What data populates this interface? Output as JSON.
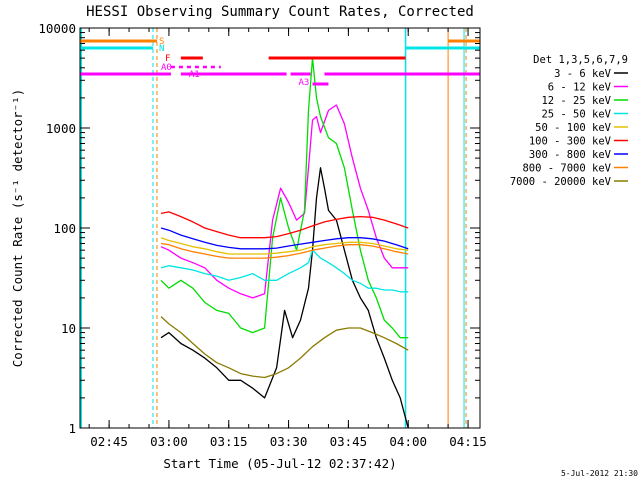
{
  "chart_data": {
    "type": "line",
    "title": "HESSI Observing Summary Count Rates, Corrected",
    "xlabel": "Start Time (05-Jul-12 02:37:42)",
    "ylabel": "Corrected Count Rate (s⁻¹ detector⁻¹)",
    "y_scale": "log",
    "ylim": [
      1,
      10000
    ],
    "xlim": [
      "02:37:42",
      "04:18:00"
    ],
    "x_ticks": [
      "02:45",
      "03:00",
      "03:15",
      "03:30",
      "03:45",
      "04:00",
      "04:15"
    ],
    "y_ticks": [
      "1",
      "10",
      "100",
      "1000",
      "10000"
    ],
    "timestamp": "5-Jul-2012 21:30",
    "legend": {
      "placement": "right",
      "title": "Det 1,3,5,6,7,9",
      "entries": [
        {
          "label": "3 - 6 keV",
          "color": "#000000"
        },
        {
          "label": "6 - 12 keV",
          "color": "#ff00ff"
        },
        {
          "label": "12 - 25 keV",
          "color": "#00dd00"
        },
        {
          "label": "25 - 50 keV",
          "color": "#00e5e5"
        },
        {
          "label": "50 - 100 keV",
          "color": "#e5c000"
        },
        {
          "label": "100 - 300 keV",
          "color": "#ff0000"
        },
        {
          "label": "300 - 800 keV",
          "color": "#0000ff"
        },
        {
          "label": "800 - 7000 keV",
          "color": "#ff8000"
        },
        {
          "label": "7000 - 20000 keV",
          "color": "#8b7a00"
        }
      ]
    },
    "flag_labels": [
      {
        "text": "S",
        "color": "#ff8000"
      },
      {
        "text": "N",
        "color": "#00e5e5"
      },
      {
        "text": "F",
        "color": "#ff0000"
      },
      {
        "text": "A0",
        "color": "#ff00ff"
      },
      {
        "text": "A1",
        "color": "#ff00ff"
      },
      {
        "text": "A3",
        "color": "#ff00ff"
      }
    ],
    "series": [
      {
        "name": "3 - 6 keV",
        "color": "#000000",
        "points": [
          [
            "02:58",
            8
          ],
          [
            "03:00",
            9
          ],
          [
            "03:03",
            7
          ],
          [
            "03:06",
            6
          ],
          [
            "03:09",
            5
          ],
          [
            "03:12",
            4
          ],
          [
            "03:15",
            3
          ],
          [
            "03:18",
            3
          ],
          [
            "03:21",
            2.5
          ],
          [
            "03:24",
            2
          ],
          [
            "03:27",
            4
          ],
          [
            "03:29",
            15
          ],
          [
            "03:31",
            8
          ],
          [
            "03:33",
            12
          ],
          [
            "03:35",
            25
          ],
          [
            "03:36",
            60
          ],
          [
            "03:37",
            200
          ],
          [
            "03:38",
            400
          ],
          [
            "03:39",
            250
          ],
          [
            "03:40",
            150
          ],
          [
            "03:42",
            120
          ],
          [
            "03:44",
            60
          ],
          [
            "03:46",
            30
          ],
          [
            "03:48",
            20
          ],
          [
            "03:50",
            15
          ],
          [
            "03:52",
            8
          ],
          [
            "03:54",
            5
          ],
          [
            "03:56",
            3
          ],
          [
            "03:58",
            2
          ],
          [
            "04:00",
            1
          ]
        ]
      },
      {
        "name": "6 - 12 keV",
        "color": "#ff00ff",
        "points": [
          [
            "02:58",
            65
          ],
          [
            "03:00",
            60
          ],
          [
            "03:03",
            50
          ],
          [
            "03:06",
            45
          ],
          [
            "03:09",
            40
          ],
          [
            "03:12",
            30
          ],
          [
            "03:15",
            25
          ],
          [
            "03:18",
            22
          ],
          [
            "03:21",
            20
          ],
          [
            "03:24",
            22
          ],
          [
            "03:26",
            120
          ],
          [
            "03:28",
            250
          ],
          [
            "03:30",
            180
          ],
          [
            "03:32",
            120
          ],
          [
            "03:34",
            140
          ],
          [
            "03:35",
            400
          ],
          [
            "03:36",
            1200
          ],
          [
            "03:37",
            1300
          ],
          [
            "03:38",
            900
          ],
          [
            "03:40",
            1500
          ],
          [
            "03:42",
            1700
          ],
          [
            "03:44",
            1100
          ],
          [
            "03:46",
            500
          ],
          [
            "03:48",
            250
          ],
          [
            "03:50",
            150
          ],
          [
            "03:52",
            80
          ],
          [
            "03:54",
            50
          ],
          [
            "03:56",
            40
          ],
          [
            "03:58",
            40
          ],
          [
            "04:00",
            40
          ]
        ]
      },
      {
        "name": "12 - 25 keV",
        "color": "#00dd00",
        "points": [
          [
            "02:58",
            30
          ],
          [
            "03:00",
            25
          ],
          [
            "03:03",
            30
          ],
          [
            "03:06",
            25
          ],
          [
            "03:09",
            18
          ],
          [
            "03:12",
            15
          ],
          [
            "03:15",
            14
          ],
          [
            "03:18",
            10
          ],
          [
            "03:21",
            9
          ],
          [
            "03:24",
            10
          ],
          [
            "03:26",
            80
          ],
          [
            "03:28",
            200
          ],
          [
            "03:30",
            100
          ],
          [
            "03:32",
            60
          ],
          [
            "03:34",
            150
          ],
          [
            "03:35",
            1500
          ],
          [
            "03:36",
            5000
          ],
          [
            "03:37",
            2000
          ],
          [
            "03:38",
            1300
          ],
          [
            "03:40",
            800
          ],
          [
            "03:42",
            700
          ],
          [
            "03:44",
            400
          ],
          [
            "03:46",
            150
          ],
          [
            "03:48",
            60
          ],
          [
            "03:50",
            30
          ],
          [
            "03:52",
            20
          ],
          [
            "03:54",
            12
          ],
          [
            "03:56",
            10
          ],
          [
            "03:58",
            8
          ],
          [
            "04:00",
            8
          ]
        ]
      },
      {
        "name": "25 - 50 keV",
        "color": "#00e5e5",
        "points": [
          [
            "02:58",
            40
          ],
          [
            "03:00",
            42
          ],
          [
            "03:03",
            40
          ],
          [
            "03:06",
            38
          ],
          [
            "03:09",
            35
          ],
          [
            "03:12",
            33
          ],
          [
            "03:15",
            30
          ],
          [
            "03:18",
            32
          ],
          [
            "03:21",
            35
          ],
          [
            "03:24",
            30
          ],
          [
            "03:27",
            30
          ],
          [
            "03:30",
            35
          ],
          [
            "03:33",
            40
          ],
          [
            "03:35",
            45
          ],
          [
            "03:36",
            60
          ],
          [
            "03:38",
            50
          ],
          [
            "03:40",
            45
          ],
          [
            "03:42",
            40
          ],
          [
            "03:44",
            35
          ],
          [
            "03:46",
            30
          ],
          [
            "03:48",
            28
          ],
          [
            "03:50",
            25
          ],
          [
            "03:52",
            25
          ],
          [
            "03:54",
            24
          ],
          [
            "03:56",
            24
          ],
          [
            "03:58",
            23
          ],
          [
            "04:00",
            23
          ]
        ]
      },
      {
        "name": "50 - 100 keV",
        "color": "#e5c000",
        "points": [
          [
            "02:58",
            80
          ],
          [
            "03:00",
            75
          ],
          [
            "03:03",
            70
          ],
          [
            "03:06",
            65
          ],
          [
            "03:09",
            62
          ],
          [
            "03:12",
            58
          ],
          [
            "03:15",
            55
          ],
          [
            "03:18",
            55
          ],
          [
            "03:21",
            55
          ],
          [
            "03:24",
            55
          ],
          [
            "03:27",
            56
          ],
          [
            "03:30",
            58
          ],
          [
            "03:33",
            60
          ],
          [
            "03:36",
            65
          ],
          [
            "03:39",
            68
          ],
          [
            "03:42",
            70
          ],
          [
            "03:45",
            72
          ],
          [
            "03:48",
            72
          ],
          [
            "03:51",
            70
          ],
          [
            "03:54",
            66
          ],
          [
            "03:57",
            62
          ],
          [
            "04:00",
            60
          ]
        ]
      },
      {
        "name": "100 - 300 keV",
        "color": "#ff0000",
        "points": [
          [
            "02:58",
            140
          ],
          [
            "03:00",
            145
          ],
          [
            "03:03",
            130
          ],
          [
            "03:06",
            115
          ],
          [
            "03:09",
            100
          ],
          [
            "03:12",
            92
          ],
          [
            "03:15",
            85
          ],
          [
            "03:18",
            80
          ],
          [
            "03:21",
            80
          ],
          [
            "03:24",
            80
          ],
          [
            "03:27",
            82
          ],
          [
            "03:30",
            88
          ],
          [
            "03:33",
            95
          ],
          [
            "03:36",
            105
          ],
          [
            "03:39",
            115
          ],
          [
            "03:42",
            122
          ],
          [
            "03:45",
            128
          ],
          [
            "03:48",
            130
          ],
          [
            "03:51",
            128
          ],
          [
            "03:54",
            120
          ],
          [
            "03:57",
            110
          ],
          [
            "04:00",
            100
          ]
        ]
      },
      {
        "name": "300 - 800 keV",
        "color": "#0000ff",
        "points": [
          [
            "02:58",
            100
          ],
          [
            "03:00",
            95
          ],
          [
            "03:03",
            85
          ],
          [
            "03:06",
            78
          ],
          [
            "03:09",
            72
          ],
          [
            "03:12",
            67
          ],
          [
            "03:15",
            64
          ],
          [
            "03:18",
            62
          ],
          [
            "03:21",
            62
          ],
          [
            "03:24",
            62
          ],
          [
            "03:27",
            63
          ],
          [
            "03:30",
            66
          ],
          [
            "03:33",
            69
          ],
          [
            "03:36",
            72
          ],
          [
            "03:39",
            75
          ],
          [
            "03:42",
            78
          ],
          [
            "03:45",
            80
          ],
          [
            "03:48",
            80
          ],
          [
            "03:51",
            78
          ],
          [
            "03:54",
            74
          ],
          [
            "03:57",
            68
          ],
          [
            "04:00",
            62
          ]
        ]
      },
      {
        "name": "800 - 7000 keV",
        "color": "#ff8000",
        "points": [
          [
            "02:58",
            70
          ],
          [
            "03:00",
            68
          ],
          [
            "03:03",
            62
          ],
          [
            "03:06",
            58
          ],
          [
            "03:09",
            55
          ],
          [
            "03:12",
            52
          ],
          [
            "03:15",
            50
          ],
          [
            "03:18",
            50
          ],
          [
            "03:21",
            50
          ],
          [
            "03:24",
            50
          ],
          [
            "03:27",
            51
          ],
          [
            "03:30",
            53
          ],
          [
            "03:33",
            56
          ],
          [
            "03:36",
            60
          ],
          [
            "03:39",
            63
          ],
          [
            "03:42",
            66
          ],
          [
            "03:45",
            68
          ],
          [
            "03:48",
            68
          ],
          [
            "03:51",
            66
          ],
          [
            "03:54",
            62
          ],
          [
            "03:57",
            58
          ],
          [
            "04:00",
            55
          ]
        ]
      },
      {
        "name": "7000 - 20000 keV",
        "color": "#8b7a00",
        "points": [
          [
            "02:58",
            13
          ],
          [
            "03:00",
            11
          ],
          [
            "03:03",
            9
          ],
          [
            "03:06",
            7
          ],
          [
            "03:09",
            5.5
          ],
          [
            "03:12",
            4.5
          ],
          [
            "03:15",
            4
          ],
          [
            "03:18",
            3.5
          ],
          [
            "03:21",
            3.3
          ],
          [
            "03:24",
            3.2
          ],
          [
            "03:27",
            3.5
          ],
          [
            "03:30",
            4
          ],
          [
            "03:33",
            5
          ],
          [
            "03:36",
            6.5
          ],
          [
            "03:39",
            8
          ],
          [
            "03:42",
            9.5
          ],
          [
            "03:45",
            10
          ],
          [
            "03:48",
            10
          ],
          [
            "03:51",
            9
          ],
          [
            "03:54",
            8
          ],
          [
            "03:57",
            7
          ],
          [
            "04:00",
            6
          ]
        ]
      }
    ]
  }
}
